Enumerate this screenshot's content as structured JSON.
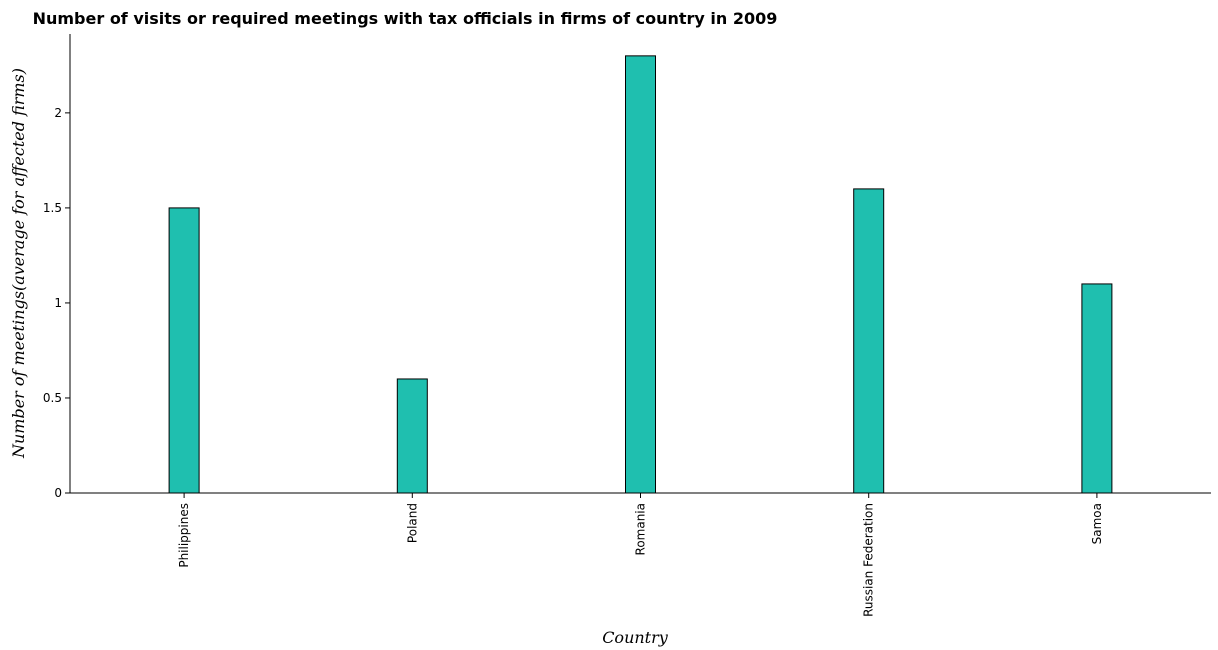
{
  "chart_data": {
    "type": "bar",
    "title": "Number of visits or required meetings with tax officials in firms of country in 2009",
    "xlabel": "Country",
    "ylabel": "Number of meetings(average for affected firms)",
    "categories": [
      "Philippines",
      "Poland",
      "Romania",
      "Russian Federation",
      "Samoa"
    ],
    "values": [
      1.5,
      0.6,
      2.3,
      1.6,
      1.1
    ],
    "ylim": [
      0,
      2.415
    ],
    "yticks": [
      0,
      0.5,
      1,
      1.5,
      2
    ],
    "ytick_labels": [
      "0",
      "0.5",
      "1",
      "1.5",
      "2"
    ],
    "grid": false,
    "legend": "none",
    "colors": {
      "bar_fill": "#1fbfaf",
      "bar_stroke": "#000000",
      "axis": "#000000"
    }
  }
}
